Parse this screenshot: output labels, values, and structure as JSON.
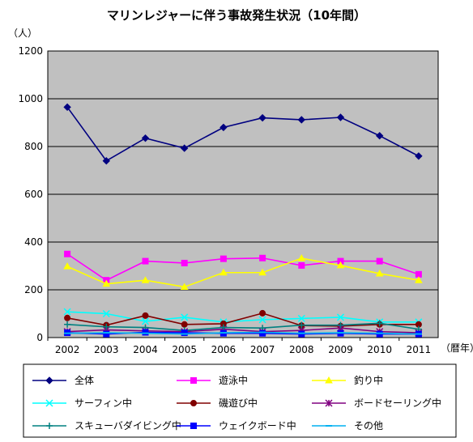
{
  "chart_data": {
    "type": "line",
    "title": "マリンレジャーに伴う事故発生状況（10年間）",
    "ylabel": "（人）",
    "xlabel": "（暦年）",
    "x": [
      "2002",
      "2003",
      "2004",
      "2005",
      "2006",
      "2007",
      "2008",
      "2009",
      "2010",
      "2011"
    ],
    "yticks": [
      "0",
      "200",
      "400",
      "600",
      "800",
      "1000",
      "1200"
    ],
    "ylim": [
      0,
      1200
    ],
    "grid": true,
    "legend_position": "bottom",
    "plot_background": "#c0c0c0",
    "series": [
      {
        "name": "全体",
        "color": "#000080",
        "marker": "diamond",
        "values": [
          965,
          740,
          835,
          793,
          880,
          920,
          912,
          922,
          845,
          760
        ]
      },
      {
        "name": "遊泳中",
        "color": "#ff00ff",
        "marker": "square",
        "values": [
          350,
          240,
          320,
          312,
          330,
          333,
          302,
          320,
          320,
          265
        ]
      },
      {
        "name": "釣り中",
        "color": "#ffff00",
        "marker": "triangle",
        "values": [
          298,
          225,
          240,
          212,
          272,
          272,
          332,
          302,
          268,
          240
        ]
      },
      {
        "name": "サーフィン中",
        "color": "#00ffff",
        "marker": "x",
        "values": [
          108,
          100,
          68,
          85,
          65,
          75,
          80,
          85,
          65,
          65
        ]
      },
      {
        "name": "磯遊び中",
        "color": "#800000",
        "marker": "circle",
        "values": [
          82,
          52,
          92,
          55,
          58,
          102,
          50,
          48,
          55,
          55
        ]
      },
      {
        "name": "ボードセーリング中",
        "color": "#800080",
        "marker": "star",
        "values": [
          25,
          32,
          28,
          25,
          35,
          25,
          30,
          40,
          25,
          20
        ]
      },
      {
        "name": "スキューバダイビング中",
        "color": "#008080",
        "marker": "plus",
        "values": [
          55,
          45,
          42,
          30,
          42,
          40,
          52,
          52,
          60,
          35
        ]
      },
      {
        "name": "ウェイクボード中",
        "color": "#0000ff",
        "marker": "filled-square",
        "values": [
          20,
          15,
          22,
          20,
          18,
          18,
          15,
          18,
          15,
          15
        ]
      },
      {
        "name": "その他",
        "color": "#00b0f0",
        "marker": "dash",
        "values": [
          18,
          20,
          18,
          15,
          20,
          22,
          18,
          20,
          18,
          15
        ]
      }
    ]
  }
}
